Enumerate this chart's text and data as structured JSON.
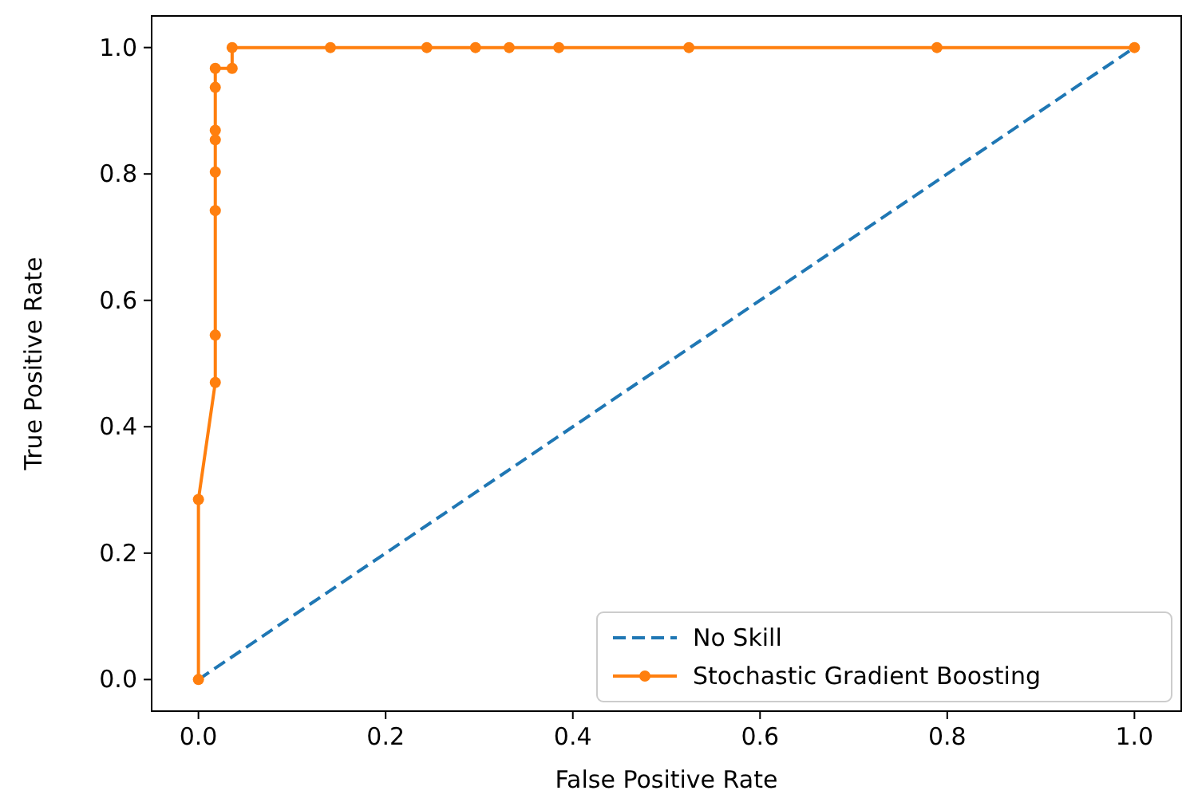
{
  "chart_data": {
    "type": "line",
    "xlabel": "False Positive Rate",
    "ylabel": "True Positive Rate",
    "xlim": [
      -0.05,
      1.05
    ],
    "ylim": [
      -0.05,
      1.05
    ],
    "xticks": [
      {
        "value": 0,
        "label": "0.0"
      },
      0.2,
      0.4,
      0.6,
      0.8,
      {
        "value": 1,
        "label": "1.0"
      }
    ],
    "yticks": [
      {
        "value": 0,
        "label": "0.0"
      },
      0.2,
      0.4,
      0.6,
      0.8,
      {
        "value": 1,
        "label": "1.0"
      }
    ],
    "legend": "bottom right",
    "grid": false,
    "series": [
      {
        "name": "No Skill",
        "color": "#1f77b4",
        "line_style": "dashed",
        "marker": "none",
        "x": [
          0,
          1
        ],
        "values": [
          0,
          1
        ]
      },
      {
        "name": "Stochastic Gradient Boosting",
        "color": "#ff7f0e",
        "line_style": "solid",
        "marker": "circle",
        "x": [
          0,
          0,
          0.018,
          0.018,
          0.018,
          0.018,
          0.018,
          0.018,
          0.018,
          0.018,
          0.036,
          0.036,
          0.141,
          0.244,
          0.296,
          0.332,
          0.385,
          0.524,
          0.789,
          1
        ],
        "values": [
          0,
          0.285,
          0.47,
          0.545,
          0.742,
          0.803,
          0.854,
          0.869,
          0.937,
          0.967,
          0.967,
          1,
          1,
          1,
          1,
          1,
          1,
          1,
          1,
          1
        ]
      }
    ]
  }
}
